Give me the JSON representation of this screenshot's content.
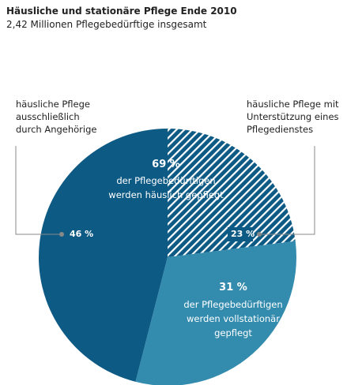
{
  "chart_data": {
    "type": "pie",
    "title": "Häusliche und stationäre Pflege Ende 2010",
    "subtitle": "2,42 Millionen Pflegebedürftige insgesamt",
    "categories": [
      "häusliche Pflege ausschließlich durch Angehörige",
      "häusliche Pflege mit Unterstützung eines Pflegedienstes",
      "der Pflegebedürftigen werden vollstationär gepflegt"
    ],
    "values": [
      46,
      23,
      31
    ],
    "value_labels": [
      "46 %",
      "23 %",
      "31 %"
    ],
    "colors": [
      "#0d5a85",
      "#0d5a85",
      "#338bae"
    ],
    "hatched": [
      false,
      true,
      false
    ],
    "annotations": [
      {
        "label": "69 %",
        "text": "der Pflegebedürftigen werden häuslich gepflegt"
      }
    ]
  }
}
